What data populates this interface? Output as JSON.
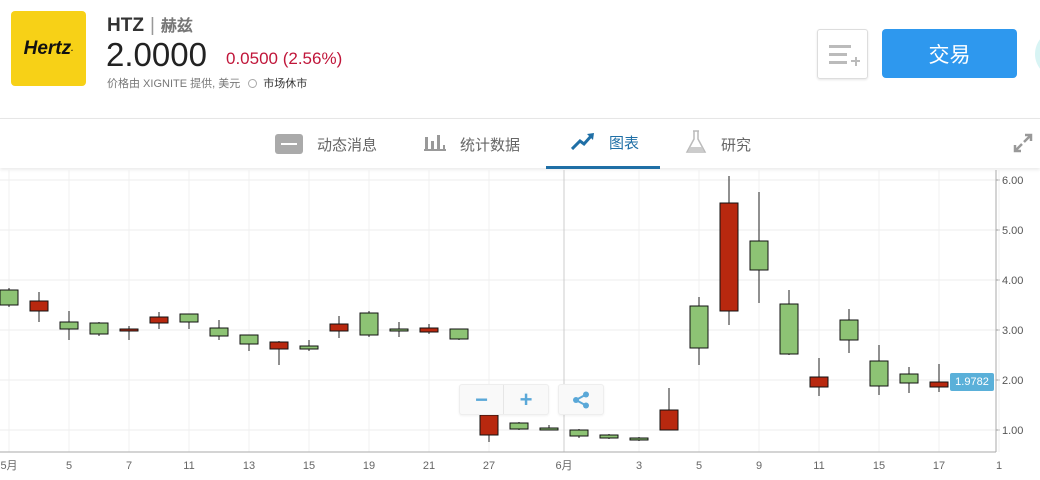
{
  "header": {
    "logo_text": "Hertz.",
    "symbol": "HTZ",
    "separator": "|",
    "name": "赫兹",
    "price": "2.0000",
    "change": "0.0500 (2.56%)",
    "source": "价格由 XIGNITE 提供, 美元",
    "market_status": "市场休市",
    "change_color": "#c0163a"
  },
  "actions": {
    "watchlist_icon": "add-to-list-icon",
    "trade_label": "交易",
    "trade_color": "#2e98ee"
  },
  "tabs": [
    {
      "label": "动态消息",
      "icon": "news-icon"
    },
    {
      "label": "统计数据",
      "icon": "bar-stats-icon"
    },
    {
      "label": "图表",
      "icon": "chart-trend-icon",
      "active": true
    },
    {
      "label": "研究",
      "icon": "flask-icon"
    }
  ],
  "chart_controls": {
    "zoom_out": "−",
    "zoom_in": "+",
    "share_icon": "share-icon",
    "expand_icon": "expand-icon"
  },
  "chart_data": {
    "type": "candlestick",
    "up_color": "#8dc374",
    "down_color": "#b8280f",
    "ylim": [
      0.55,
      6.2
    ],
    "y_ticks": [
      "1.00",
      "2.00",
      "3.00",
      "4.00",
      "5.00",
      "6.00"
    ],
    "last_price": "1.9782",
    "x_labels": [
      {
        "i": 0,
        "label": "5月"
      },
      {
        "i": 2,
        "label": "5"
      },
      {
        "i": 4,
        "label": "7"
      },
      {
        "i": 6,
        "label": "11"
      },
      {
        "i": 8,
        "label": "13"
      },
      {
        "i": 10,
        "label": "15"
      },
      {
        "i": 12,
        "label": "19"
      },
      {
        "i": 14,
        "label": "21"
      },
      {
        "i": 16,
        "label": "27"
      },
      {
        "i": 18.5,
        "label": "6月"
      },
      {
        "i": 21,
        "label": "3"
      },
      {
        "i": 23,
        "label": "5"
      },
      {
        "i": 25,
        "label": "9"
      },
      {
        "i": 27,
        "label": "11"
      },
      {
        "i": 29,
        "label": "15"
      },
      {
        "i": 31,
        "label": "17"
      },
      {
        "i": 33,
        "label": "1"
      }
    ],
    "candles": [
      {
        "top": 3.8,
        "bottom": 3.5,
        "high": 3.84,
        "low": 3.46,
        "color": "green"
      },
      {
        "top": 3.58,
        "bottom": 3.38,
        "high": 3.76,
        "low": 3.16,
        "color": "red"
      },
      {
        "top": 3.16,
        "bottom": 3.02,
        "high": 3.38,
        "low": 2.8,
        "color": "green"
      },
      {
        "top": 3.14,
        "bottom": 2.92,
        "high": 3.16,
        "low": 2.88,
        "color": "green"
      },
      {
        "top": 3.02,
        "bottom": 2.98,
        "high": 3.08,
        "low": 2.8,
        "color": "red"
      },
      {
        "top": 3.26,
        "bottom": 3.14,
        "high": 3.36,
        "low": 3.02,
        "color": "red"
      },
      {
        "top": 3.32,
        "bottom": 3.16,
        "high": 3.32,
        "low": 3.02,
        "color": "green"
      },
      {
        "top": 3.04,
        "bottom": 2.88,
        "high": 3.2,
        "low": 2.8,
        "color": "green"
      },
      {
        "top": 2.9,
        "bottom": 2.72,
        "high": 2.9,
        "low": 2.58,
        "color": "green"
      },
      {
        "top": 2.76,
        "bottom": 2.62,
        "high": 2.78,
        "low": 2.3,
        "color": "red"
      },
      {
        "top": 2.68,
        "bottom": 2.62,
        "high": 2.8,
        "low": 2.58,
        "color": "green"
      },
      {
        "top": 3.12,
        "bottom": 2.98,
        "high": 3.28,
        "low": 2.84,
        "color": "red"
      },
      {
        "top": 3.34,
        "bottom": 2.9,
        "high": 3.38,
        "low": 2.86,
        "color": "green"
      },
      {
        "top": 3.02,
        "bottom": 2.98,
        "high": 3.16,
        "low": 2.86,
        "color": "green"
      },
      {
        "top": 3.04,
        "bottom": 2.96,
        "high": 3.12,
        "low": 2.92,
        "color": "red"
      },
      {
        "top": 3.02,
        "bottom": 2.82,
        "high": 3.02,
        "low": 2.8,
        "color": "green"
      },
      {
        "top": 1.3,
        "bottom": 0.9,
        "high": 1.46,
        "low": 0.76,
        "color": "red"
      },
      {
        "top": 1.14,
        "bottom": 1.02,
        "high": 1.16,
        "low": 1.0,
        "color": "green"
      },
      {
        "top": 1.04,
        "bottom": 1.0,
        "high": 1.1,
        "low": 1.0,
        "color": "green"
      },
      {
        "top": 1.0,
        "bottom": 0.88,
        "high": 1.02,
        "low": 0.84,
        "color": "green"
      },
      {
        "top": 0.9,
        "bottom": 0.84,
        "high": 0.92,
        "low": 0.82,
        "color": "green"
      },
      {
        "top": 0.84,
        "bottom": 0.8,
        "high": 0.86,
        "low": 0.78,
        "color": "green"
      },
      {
        "top": 1.4,
        "bottom": 1.0,
        "high": 1.84,
        "low": 1.0,
        "color": "red"
      },
      {
        "top": 3.48,
        "bottom": 2.64,
        "high": 3.66,
        "low": 2.3,
        "color": "green"
      },
      {
        "top": 5.54,
        "bottom": 3.38,
        "high": 6.08,
        "low": 3.1,
        "color": "red"
      },
      {
        "top": 4.78,
        "bottom": 4.2,
        "high": 5.76,
        "low": 3.54,
        "color": "green"
      },
      {
        "top": 3.52,
        "bottom": 2.52,
        "high": 3.8,
        "low": 2.5,
        "color": "green"
      },
      {
        "top": 2.06,
        "bottom": 1.86,
        "high": 2.44,
        "low": 1.68,
        "color": "red"
      },
      {
        "top": 3.2,
        "bottom": 2.8,
        "high": 3.42,
        "low": 2.54,
        "color": "green"
      },
      {
        "top": 2.38,
        "bottom": 1.88,
        "high": 2.7,
        "low": 1.7,
        "color": "green"
      },
      {
        "top": 2.12,
        "bottom": 1.94,
        "high": 2.26,
        "low": 1.74,
        "color": "green"
      },
      {
        "top": 1.96,
        "bottom": 1.86,
        "high": 2.32,
        "low": 1.76,
        "color": "red"
      }
    ]
  }
}
